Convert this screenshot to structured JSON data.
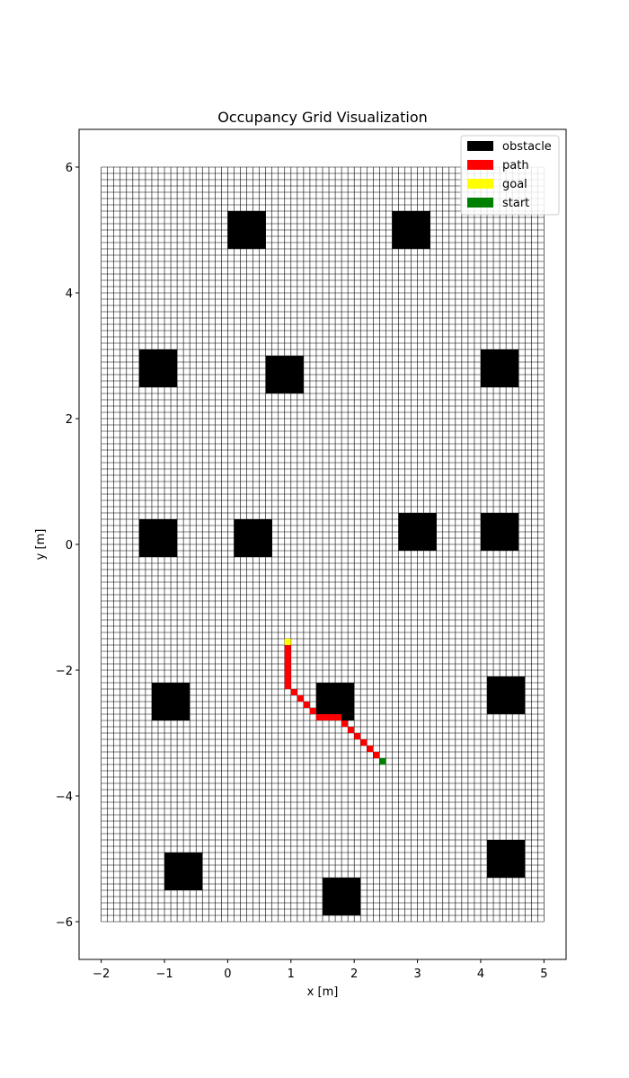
{
  "chart_data": {
    "type": "heatmap",
    "title": "Occupancy Grid Visualization",
    "xlabel": "x [m]",
    "ylabel": "y [m]",
    "xlim": [
      -2.35,
      5.35
    ],
    "ylim": [
      -6.6,
      6.6
    ],
    "xticks": [
      {
        "value": -2,
        "label": "−2"
      },
      {
        "value": -1,
        "label": "−1"
      },
      {
        "value": 0,
        "label": "0"
      },
      {
        "value": 1,
        "label": "1"
      },
      {
        "value": 2,
        "label": "2"
      },
      {
        "value": 3,
        "label": "3"
      },
      {
        "value": 4,
        "label": "4"
      },
      {
        "value": 5,
        "label": "5"
      }
    ],
    "yticks": [
      {
        "value": -6,
        "label": "−6"
      },
      {
        "value": -4,
        "label": "−4"
      },
      {
        "value": -2,
        "label": "−2"
      },
      {
        "value": 0,
        "label": "0"
      },
      {
        "value": 2,
        "label": "2"
      },
      {
        "value": 4,
        "label": "4"
      },
      {
        "value": 6,
        "label": "6"
      }
    ],
    "grid": {
      "x_min": -2,
      "x_max": 5,
      "y_min": -6,
      "y_max": 6,
      "resolution": 0.1
    },
    "legend_position": "top-right",
    "legend": [
      {
        "label": "obstacle",
        "color": "#000000"
      },
      {
        "label": "path",
        "color": "#ff0000"
      },
      {
        "label": "goal",
        "color": "#ffff00"
      },
      {
        "label": "start",
        "color": "#008000"
      }
    ],
    "obstacles": [
      {
        "x": [
          0.0,
          0.6
        ],
        "y": [
          4.7,
          5.3
        ]
      },
      {
        "x": [
          2.6,
          3.2
        ],
        "y": [
          4.7,
          5.3
        ]
      },
      {
        "x": [
          -1.4,
          -0.8
        ],
        "y": [
          2.5,
          3.1
        ]
      },
      {
        "x": [
          0.6,
          1.2
        ],
        "y": [
          2.4,
          3.0
        ]
      },
      {
        "x": [
          4.0,
          4.6
        ],
        "y": [
          2.5,
          3.1
        ]
      },
      {
        "x": [
          -1.4,
          -0.8
        ],
        "y": [
          -0.2,
          0.4
        ]
      },
      {
        "x": [
          0.1,
          0.7
        ],
        "y": [
          -0.2,
          0.4
        ]
      },
      {
        "x": [
          2.7,
          3.3
        ],
        "y": [
          -0.1,
          0.5
        ]
      },
      {
        "x": [
          4.0,
          4.6
        ],
        "y": [
          -0.1,
          0.5
        ]
      },
      {
        "x": [
          -1.2,
          -0.6
        ],
        "y": [
          -2.8,
          -2.2
        ]
      },
      {
        "x": [
          1.4,
          2.0
        ],
        "y": [
          -2.8,
          -2.2
        ]
      },
      {
        "x": [
          4.1,
          4.7
        ],
        "y": [
          -2.7,
          -2.1
        ]
      },
      {
        "x": [
          -1.0,
          -0.4
        ],
        "y": [
          -5.5,
          -4.9
        ]
      },
      {
        "x": [
          4.1,
          4.7
        ],
        "y": [
          -5.3,
          -4.7
        ]
      },
      {
        "x": [
          1.5,
          2.1
        ],
        "y": [
          -5.9,
          -5.3
        ]
      }
    ],
    "path": [
      [
        0.9,
        -1.7
      ],
      [
        0.9,
        -1.8
      ],
      [
        0.9,
        -1.9
      ],
      [
        0.9,
        -2.0
      ],
      [
        0.9,
        -2.1
      ],
      [
        0.9,
        -2.2
      ],
      [
        0.9,
        -2.3
      ],
      [
        1.0,
        -2.4
      ],
      [
        1.1,
        -2.5
      ],
      [
        1.2,
        -2.6
      ],
      [
        1.3,
        -2.7
      ],
      [
        1.4,
        -2.8
      ],
      [
        1.5,
        -2.8
      ],
      [
        1.6,
        -2.8
      ],
      [
        1.7,
        -2.8
      ],
      [
        1.8,
        -2.9
      ],
      [
        1.9,
        -3.0
      ],
      [
        2.0,
        -3.1
      ],
      [
        2.1,
        -3.2
      ],
      [
        2.2,
        -3.3
      ],
      [
        2.3,
        -3.4
      ]
    ],
    "goal": [
      0.9,
      -1.6
    ],
    "start": [
      2.4,
      -3.5
    ]
  }
}
